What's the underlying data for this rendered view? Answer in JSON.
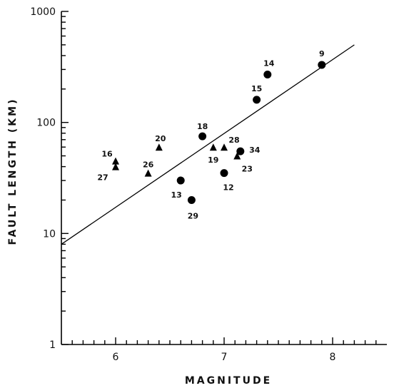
{
  "chart_data": {
    "type": "scatter",
    "title": "",
    "xlabel": "MAGNITUDE",
    "ylabel": "FAULT LENGTH (KM)",
    "xlim": [
      5.5,
      8.5
    ],
    "ylim": [
      1,
      1000
    ],
    "y_scale": "log",
    "grid": false,
    "x_ticks": [
      6,
      7,
      8
    ],
    "x_tick_labels": [
      "6",
      "7",
      "8"
    ],
    "y_ticks": [
      1,
      10,
      100,
      1000
    ],
    "y_tick_labels": [
      "1",
      "10",
      "100",
      "1000"
    ],
    "series": [
      {
        "marker": "triangle",
        "points": [
          {
            "label": "16",
            "x": 6.0,
            "y": 45
          },
          {
            "label": "27",
            "x": 6.0,
            "y": 40
          },
          {
            "label": "26",
            "x": 6.3,
            "y": 35
          },
          {
            "label": "20",
            "x": 6.4,
            "y": 60
          },
          {
            "label": "19",
            "x": 6.9,
            "y": 60
          },
          {
            "label": "28",
            "x": 7.0,
            "y": 60
          },
          {
            "label": "23",
            "x": 7.12,
            "y": 50
          }
        ]
      },
      {
        "marker": "circle",
        "points": [
          {
            "label": "18",
            "x": 6.8,
            "y": 75
          },
          {
            "label": "13",
            "x": 6.6,
            "y": 30
          },
          {
            "label": "29",
            "x": 6.7,
            "y": 20
          },
          {
            "label": "12",
            "x": 7.0,
            "y": 35
          },
          {
            "label": "34",
            "x": 7.15,
            "y": 55
          },
          {
            "label": "15",
            "x": 7.3,
            "y": 160
          },
          {
            "label": "14",
            "x": 7.4,
            "y": 270
          },
          {
            "label": "9",
            "x": 7.9,
            "y": 330
          }
        ]
      }
    ],
    "fit_line": {
      "x": [
        5.5,
        8.2
      ],
      "y": [
        8,
        500
      ]
    }
  }
}
